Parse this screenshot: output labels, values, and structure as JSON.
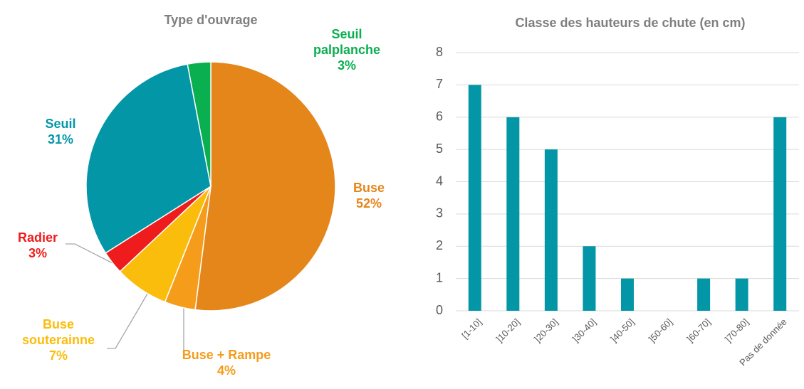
{
  "chart_data": [
    {
      "type": "pie",
      "title": "Type d'ouvrage",
      "categories": [
        "Buse",
        "Buse + Rampe",
        "Buse souterainne",
        "Radier",
        "Seuil",
        "Seuil palplanche"
      ],
      "values": [
        52,
        4,
        7,
        3,
        31,
        3
      ],
      "value_labels": [
        "52%",
        "4%",
        "7%",
        "3%",
        "31%",
        "3%"
      ],
      "colors": [
        "#e5861a",
        "#f59c1a",
        "#fbbd0b",
        "#ee1c1c",
        "#0396a6",
        "#0aaf50"
      ]
    },
    {
      "type": "bar",
      "title": "Classe des hauteurs de chute (en cm)",
      "categories": [
        "[1-10]",
        "]10-20]",
        "]20-30]",
        "]30-40]",
        "]40-50]",
        "]50-60]",
        "]60-70]",
        "]70-80]",
        "Pas de donnée"
      ],
      "values": [
        7,
        6,
        5,
        2,
        1,
        0,
        1,
        1,
        6
      ],
      "color": "#0396a6",
      "ylim": [
        0,
        8
      ],
      "yticks": [
        0,
        1,
        2,
        3,
        4,
        5,
        6,
        7,
        8
      ],
      "grid": true
    }
  ]
}
